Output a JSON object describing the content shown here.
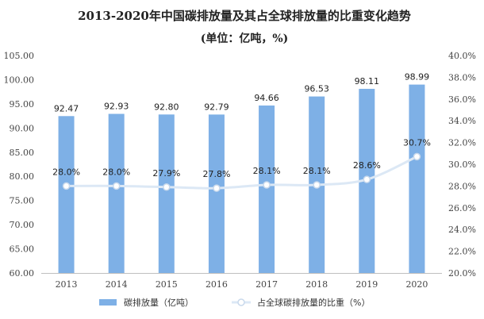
{
  "chart_data": {
    "type": "bar",
    "title": "2013-2020年中国碳排放量及其占全球排放量的比重变化趋势",
    "subtitle": "(单位：亿吨，%)",
    "categories": [
      "2013",
      "2014",
      "2015",
      "2016",
      "2017",
      "2018",
      "2019",
      "2020"
    ],
    "series": [
      {
        "name": "碳排放量（亿吨）",
        "type": "bar",
        "axis": "left",
        "color": "#7eb0e6",
        "values": [
          92.47,
          92.93,
          92.8,
          92.79,
          94.66,
          96.53,
          98.11,
          98.99
        ],
        "labels": [
          "92.47",
          "92.93",
          "92.80",
          "92.79",
          "94.66",
          "96.53",
          "98.11",
          "98.99"
        ]
      },
      {
        "name": "占全球碳排放量的比重（%）",
        "type": "line",
        "axis": "right",
        "color": "#dce8f5",
        "values": [
          28.0,
          28.0,
          27.9,
          27.8,
          28.1,
          28.1,
          28.6,
          30.7
        ],
        "labels": [
          "28.0%",
          "28.0%",
          "27.9%",
          "27.8%",
          "28.1%",
          "28.1%",
          "28.6%",
          "30.7%"
        ]
      }
    ],
    "y_left": {
      "ylim": [
        60,
        105
      ],
      "ticks": [
        "60.00",
        "65.00",
        "70.00",
        "75.00",
        "80.00",
        "85.00",
        "90.00",
        "95.00",
        "100.00",
        "105.00"
      ]
    },
    "y_right": {
      "ylim": [
        20,
        40
      ],
      "ticks": [
        "20.0%",
        "22.0%",
        "24.0%",
        "26.0%",
        "28.0%",
        "30.0%",
        "32.0%",
        "34.0%",
        "36.0%",
        "38.0%",
        "40.0%"
      ]
    },
    "grid": false,
    "legend": "bottom"
  }
}
